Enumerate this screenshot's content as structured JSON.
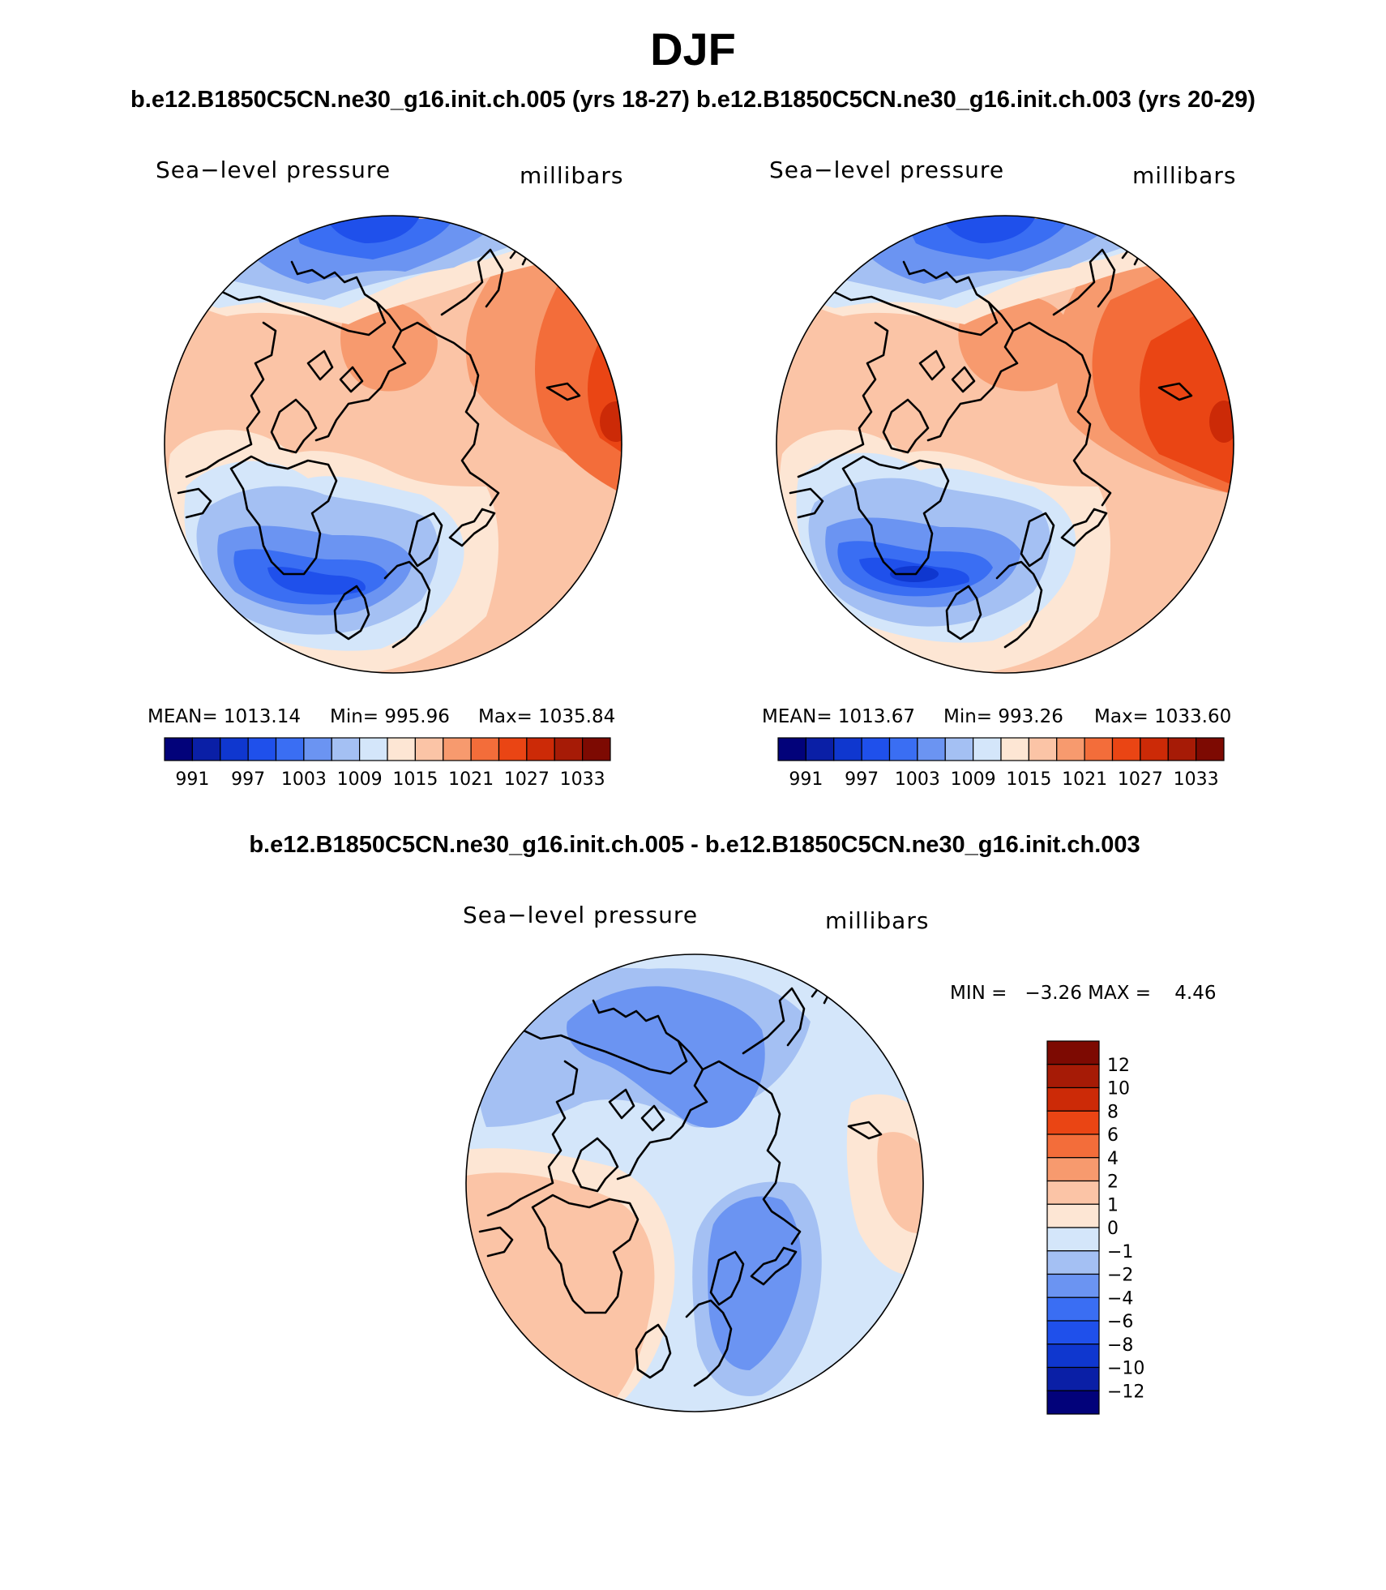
{
  "figure": {
    "season": "DJF",
    "case_titles": "b.e12.B1850C5CN.ne30_g16.init.ch.005 (yrs 18-27) b.e12.B1850C5CN.ne30_g16.init.ch.003 (yrs 20-29)",
    "diff_title": "b.e12.B1850C5CN.ne30_g16.init.ch.005 - b.e12.B1850C5CN.ne30_g16.init.ch.003"
  },
  "panels": [
    {
      "variable": "Sea−level pressure",
      "units": "millibars",
      "stats": {
        "mean": "MEAN=  1013.14",
        "min": "Min=  995.96",
        "max": "Max=  1035.84"
      }
    },
    {
      "variable": "Sea−level pressure",
      "units": "millibars",
      "stats": {
        "mean": "MEAN=  1013.67",
        "min": "Min=  993.26",
        "max": "Max=  1033.60"
      }
    }
  ],
  "diff_panel": {
    "variable": "Sea−level pressure",
    "units": "millibars",
    "stats": "MIN =   −3.26 MAX =    4.46"
  },
  "colorbar_abs": {
    "colors": [
      "#02027a",
      "#0a1fa6",
      "#0f37cf",
      "#1f50eb",
      "#3a6ef3",
      "#6b94f2",
      "#a4c0f3",
      "#d4e6fa",
      "#fde6d4",
      "#fbc4a6",
      "#f79a6e",
      "#f36d3a",
      "#ea4514",
      "#cc2a07",
      "#a61b06",
      "#7d0a02"
    ],
    "labels": [
      "991",
      "997",
      "1003",
      "1009",
      "1015",
      "1021",
      "1027",
      "1033"
    ]
  },
  "colorbar_diff": {
    "colors": [
      "#02027a",
      "#0a1fa6",
      "#0f37cf",
      "#1f50eb",
      "#3a6ef3",
      "#6b94f2",
      "#a4c0f3",
      "#d4e6fa",
      "#fde6d4",
      "#fbc4a6",
      "#f79a6e",
      "#f36d3a",
      "#ea4514",
      "#cc2a07",
      "#a61b06",
      "#7d0a02"
    ],
    "labels": [
      "12",
      "10",
      "8",
      "6",
      "4",
      "2",
      "1",
      "0",
      "−1",
      "−2",
      "−4",
      "−6",
      "−8",
      "−10",
      "−12"
    ]
  },
  "chart_data": {
    "type": "polar-stereographic contour maps",
    "variable": "Sea-level pressure",
    "units": "millibars",
    "season": "DJF",
    "maps": [
      {
        "case": "b.e12.B1850C5CN.ne30_g16.init.ch.005 (yrs 18-27)",
        "mean": 1013.14,
        "min": 995.96,
        "max": 1035.84
      },
      {
        "case": "b.e12.B1850C5CN.ne30_g16.init.ch.003 (yrs 20-29)",
        "mean": 1013.67,
        "min": 993.26,
        "max": 1033.6
      },
      {
        "case": "difference",
        "min": -3.26,
        "max": 4.46
      }
    ],
    "abs_contour_levels": [
      991,
      994,
      997,
      1000,
      1003,
      1006,
      1009,
      1012,
      1015,
      1018,
      1021,
      1024,
      1027,
      1030,
      1033
    ],
    "diff_contour_levels": [
      -12,
      -10,
      -8,
      -6,
      -4,
      -2,
      -1,
      0,
      1,
      2,
      4,
      6,
      8,
      10,
      12
    ]
  }
}
